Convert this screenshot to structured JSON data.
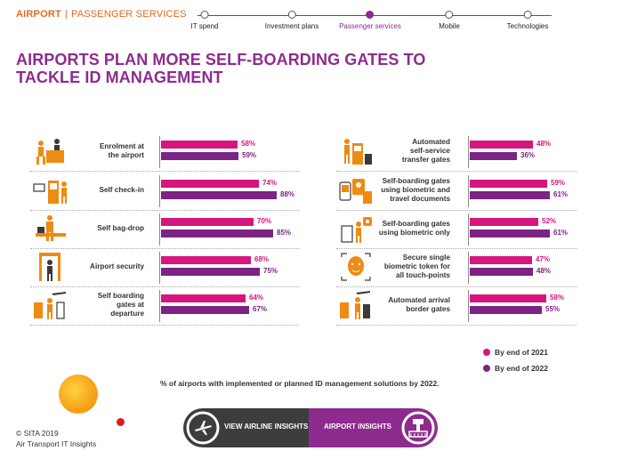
{
  "header": {
    "section_primary": "AIRPORT",
    "section_separator": "|",
    "section_secondary": "PASSENGER SERVICES",
    "nav": [
      {
        "label": "IT spend",
        "active": false
      },
      {
        "label": "Investment plans",
        "active": false
      },
      {
        "label": "Passenger services",
        "active": true
      },
      {
        "label": "Mobile",
        "active": false
      },
      {
        "label": "Technologies",
        "active": false
      }
    ]
  },
  "title_line1": "AIRPORTS PLAN MORE SELF-BOARDING GATES TO",
  "title_line2": "TACKLE ID MANAGEMENT",
  "chart_data": {
    "type": "bar",
    "orientation": "horizontal",
    "title": "AIRPORTS PLAN MORE SELF-BOARDING GATES TO TACKLE ID MANAGEMENT",
    "value_unit": "%",
    "xlim": [
      0,
      100
    ],
    "legend": [
      {
        "name": "By end of 2021",
        "color": "#d6157f"
      },
      {
        "name": "By end of 2022",
        "color": "#7b2483"
      }
    ],
    "legend_position": "bottom-right",
    "categories_left": [
      {
        "label": [
          "Enrolment at",
          "the airport"
        ],
        "icon": "enrolment-icon",
        "v2021": 58,
        "v2022": 59
      },
      {
        "label": [
          "Self check-in"
        ],
        "icon": "check-in-kiosk-icon",
        "v2021": 74,
        "v2022": 88
      },
      {
        "label": [
          "Self bag-drop"
        ],
        "icon": "bag-drop-icon",
        "v2021": 70,
        "v2022": 85
      },
      {
        "label": [
          "Airport security"
        ],
        "icon": "security-gate-icon",
        "v2021": 68,
        "v2022": 75
      },
      {
        "label": [
          "Self boarding",
          "gates at",
          "departure"
        ],
        "icon": "boarding-gate-icon",
        "v2021": 64,
        "v2022": 67
      }
    ],
    "categories_right": [
      {
        "label": [
          "Automated",
          "self-service",
          "transfer gates"
        ],
        "icon": "transfer-gate-icon",
        "v2021": 48,
        "v2022": 36
      },
      {
        "label": [
          "Self-boarding gates",
          "using biometric and",
          "travel documents"
        ],
        "icon": "biometric-docs-icon",
        "v2021": 59,
        "v2022": 61
      },
      {
        "label": [
          "Self-boarding gates",
          "using biometric only"
        ],
        "icon": "biometric-only-icon",
        "v2021": 52,
        "v2022": 61
      },
      {
        "label": [
          "Secure single",
          "biometric token for",
          "all touch-points"
        ],
        "icon": "face-token-icon",
        "v2021": 47,
        "v2022": 48
      },
      {
        "label": [
          "Automated arrival",
          "border gates"
        ],
        "icon": "arrival-gate-icon",
        "v2021": 58,
        "v2022": 55
      }
    ]
  },
  "footnote": "% of airports with implemented or planned ID management solutions by 2022.",
  "copyright": "© SITA 2019",
  "publication": "Air Transport IT Insights",
  "buttons": {
    "airline_label": "VIEW AIRLINE INSIGHTS",
    "airport_label": "AIRPORT INSIGHTS"
  },
  "colors": {
    "accent": "#8e2b8e",
    "orange": "#e8671c",
    "magenta": "#d6157f",
    "purple": "#7b2483"
  }
}
